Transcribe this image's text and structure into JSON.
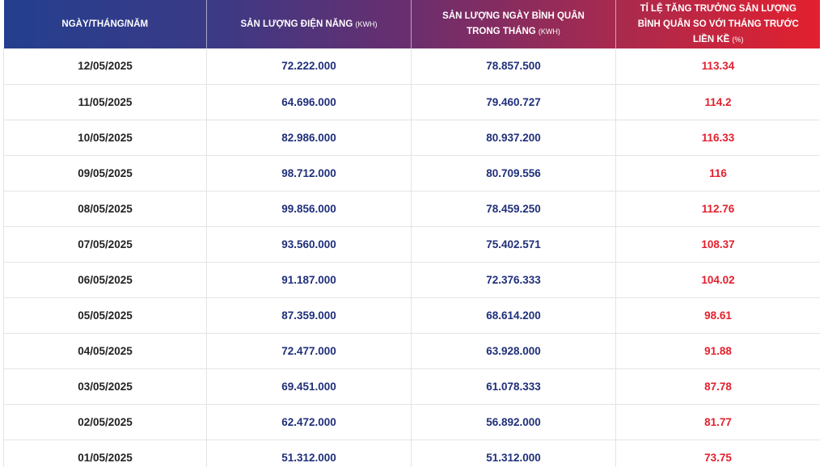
{
  "header": {
    "date_col": "NGÀY/THÁNG/NĂM",
    "output_col": "SẢN LƯỢNG ĐIỆN NĂNG",
    "output_unit": "(KWH)",
    "avg_col": "SẢN LƯỢNG NGÀY BÌNH QUÂN TRONG THÁNG",
    "avg_unit": "(KWH)",
    "growth_col": "TỈ LỆ TĂNG TRƯỞNG SẢN LƯỢNG BÌNH QUÂN SO VỚI THÁNG TRƯỚC LIỀN KỀ",
    "growth_unit": "(%)"
  },
  "rows": [
    {
      "date": "12/05/2025",
      "output": "72.222.000",
      "avg": "78.857.500",
      "growth": "113.34"
    },
    {
      "date": "11/05/2025",
      "output": "64.696.000",
      "avg": "79.460.727",
      "growth": "114.2"
    },
    {
      "date": "10/05/2025",
      "output": "82.986.000",
      "avg": "80.937.200",
      "growth": "116.33"
    },
    {
      "date": "09/05/2025",
      "output": "98.712.000",
      "avg": "80.709.556",
      "growth": "116"
    },
    {
      "date": "08/05/2025",
      "output": "99.856.000",
      "avg": "78.459.250",
      "growth": "112.76"
    },
    {
      "date": "07/05/2025",
      "output": "93.560.000",
      "avg": "75.402.571",
      "growth": "108.37"
    },
    {
      "date": "06/05/2025",
      "output": "91.187.000",
      "avg": "72.376.333",
      "growth": "104.02"
    },
    {
      "date": "05/05/2025",
      "output": "87.359.000",
      "avg": "68.614.200",
      "growth": "98.61"
    },
    {
      "date": "04/05/2025",
      "output": "72.477.000",
      "avg": "63.928.000",
      "growth": "91.88"
    },
    {
      "date": "03/05/2025",
      "output": "69.451.000",
      "avg": "61.078.333",
      "growth": "87.78"
    },
    {
      "date": "02/05/2025",
      "output": "62.472.000",
      "avg": "56.892.000",
      "growth": "81.77"
    },
    {
      "date": "01/05/2025",
      "output": "51.312.000",
      "avg": "51.312.000",
      "growth": "73.75"
    }
  ],
  "colors": {
    "header_start": "#243f8f",
    "header_end": "#e3202e",
    "value_blue": "#1f2f7a",
    "value_red": "#e3202e",
    "date_text": "#222222"
  }
}
